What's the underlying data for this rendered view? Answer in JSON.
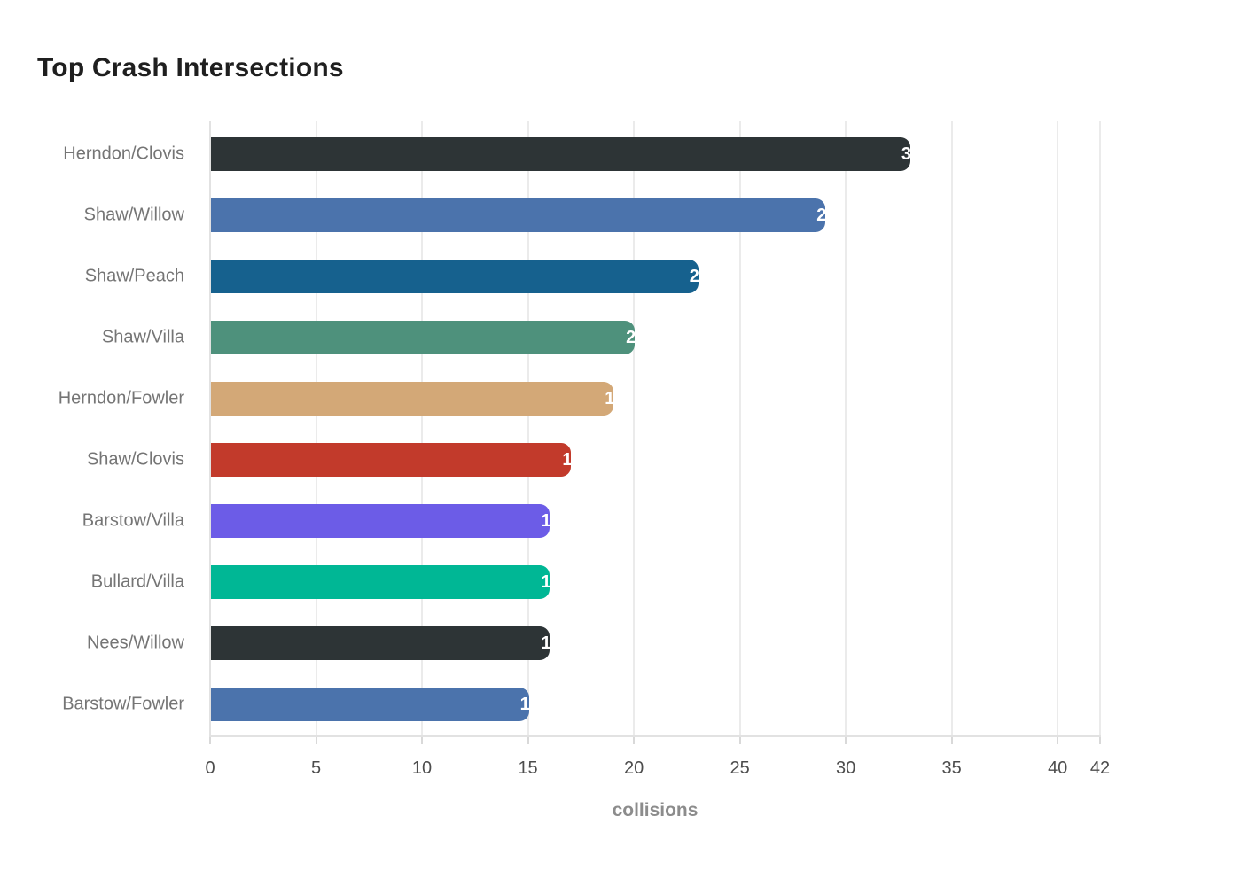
{
  "title": "Top Crash Intersections",
  "chart_data": {
    "type": "bar",
    "orientation": "horizontal",
    "title": "Top Crash Intersections",
    "categories": [
      "Herndon/Clovis",
      "Shaw/Willow",
      "Shaw/Peach",
      "Shaw/Villa",
      "Herndon/Fowler",
      "Shaw/Clovis",
      "Barstow/Villa",
      "Bullard/Villa",
      "Nees/Willow",
      "Barstow/Fowler"
    ],
    "values": [
      33,
      29,
      23,
      20,
      19,
      17,
      16,
      16,
      16,
      15
    ],
    "bar_colors": [
      "#2d3436",
      "#4b73ac",
      "#16618e",
      "#4e917c",
      "#d3a877",
      "#c23a2b",
      "#6c5ce7",
      "#00b795",
      "#2d3436",
      "#4b73ac"
    ],
    "xlabel": "collisions",
    "ylabel": "",
    "xlim": [
      0,
      42
    ],
    "xticks": [
      0,
      5,
      10,
      15,
      20,
      25,
      30,
      35,
      40,
      42
    ],
    "grid": "vertical",
    "legend": "none",
    "value_label_style": "white, anchored at bar end"
  },
  "colors": {
    "background": "#ffffff",
    "title": "#1f1f1f",
    "category_label": "#757575",
    "tick_label": "#4d4d4d",
    "axis_title": "#8c8c8c",
    "gridline": "#ebebeb",
    "axis_line": "#e2e2e2",
    "tick_mark": "#d9d9d9",
    "value_label": "#ffffff"
  }
}
